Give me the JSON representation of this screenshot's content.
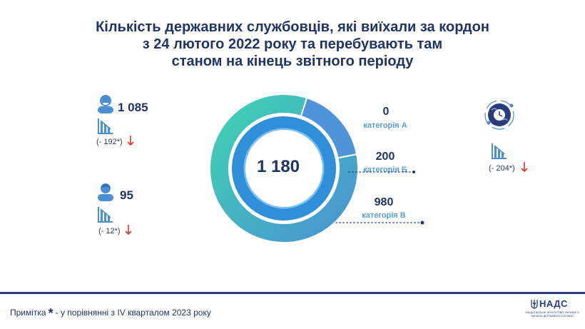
{
  "title": {
    "line1": "Кількість державних службовців, які виїхали за кордон",
    "line2": "з 24 лютого 2022 року та перебувають там",
    "line3": "станом на кінець звітного періоду"
  },
  "stats": {
    "female": {
      "value": "1 085",
      "change": "(- 192*)"
    },
    "male": {
      "value": "95",
      "change": "(- 12*)"
    },
    "total_change": "(- 204*)"
  },
  "chart_data": {
    "type": "pie",
    "title": "",
    "total": "1 180",
    "categories": [
      "категорія А",
      "категорія Б",
      "категорія В"
    ],
    "values": [
      0,
      200,
      980
    ],
    "labels": [
      "0",
      "200",
      "980"
    ],
    "colors": {
      "outer_gradient_start": "#3fd6b0",
      "outer_gradient_end": "#4a8fd4",
      "inner_ring": "#2f8fd8",
      "inner_ring_light": "#79c0ef"
    }
  },
  "footnote": {
    "prefix": "Примітка",
    "star": "*",
    "text": "- у порівнянні з IV кварталом 2023 року"
  },
  "logo": {
    "name": "НАДС",
    "subtitle": "НАЦІОНАЛЬНЕ АГЕНТСТВО УКРАЇНИ З ПИТАНЬ ДЕРЖАВНОЇ СЛУЖБИ"
  },
  "icons": [
    "female-person-icon",
    "male-person-icon",
    "bar-chart-decrease-icon",
    "down-arrow-icon",
    "globe-clock-icon",
    "trident-icon"
  ],
  "accent_colors": {
    "navy": "#1f3566",
    "red_arrow": "#e0332b",
    "category_blue": "#5a9fd8"
  }
}
